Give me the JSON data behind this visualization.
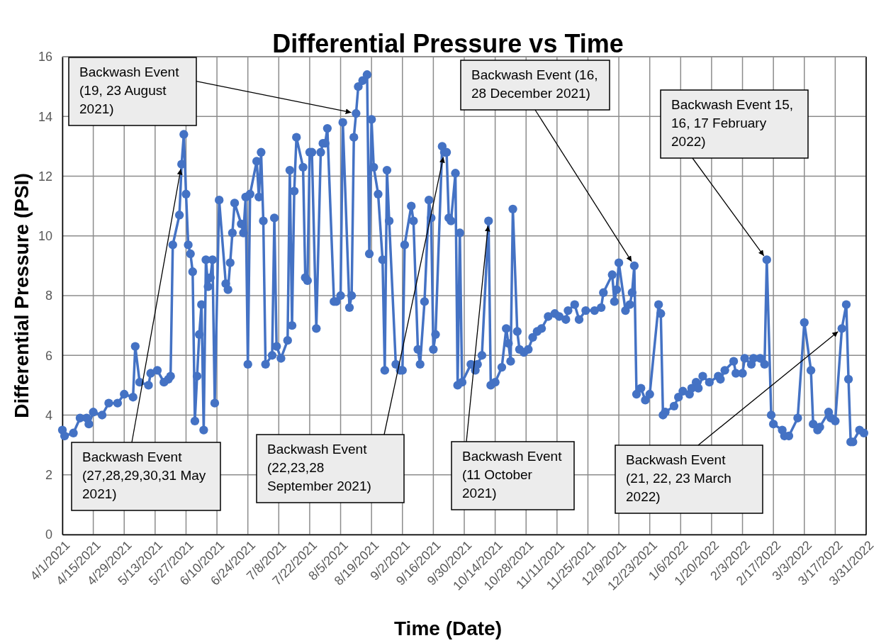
{
  "chart_data": {
    "type": "line",
    "title": "Differential Pressure vs Time",
    "xlabel": "Time (Date)",
    "ylabel": "Differential Pressure (PSI)",
    "xlim": [
      "2021-04-01",
      "2022-03-31"
    ],
    "xticks": [
      {
        "value": "2021-04-01",
        "label": "4/1/2021"
      },
      {
        "value": "2021-04-15",
        "label": "4/15/2021"
      },
      {
        "value": "2021-04-29",
        "label": "4/29/2021"
      },
      {
        "value": "2021-05-13",
        "label": "5/13/2021"
      },
      {
        "value": "2021-05-27",
        "label": "5/27/2021"
      },
      {
        "value": "2021-06-10",
        "label": "6/10/2021"
      },
      {
        "value": "2021-06-24",
        "label": "6/24/2021"
      },
      {
        "value": "2021-07-08",
        "label": "7/8/2021"
      },
      {
        "value": "2021-07-22",
        "label": "7/22/2021"
      },
      {
        "value": "2021-08-05",
        "label": "8/5/2021"
      },
      {
        "value": "2021-08-19",
        "label": "8/19/2021"
      },
      {
        "value": "2021-09-02",
        "label": "9/2/2021"
      },
      {
        "value": "2021-09-16",
        "label": "9/16/2021"
      },
      {
        "value": "2021-09-30",
        "label": "9/30/2021"
      },
      {
        "value": "2021-10-14",
        "label": "10/14/2021"
      },
      {
        "value": "2021-10-28",
        "label": "10/28/2021"
      },
      {
        "value": "2021-11-11",
        "label": "11/11/2021"
      },
      {
        "value": "2021-11-25",
        "label": "11/25/2021"
      },
      {
        "value": "2021-12-09",
        "label": "12/9/2021"
      },
      {
        "value": "2021-12-23",
        "label": "12/23/2021"
      },
      {
        "value": "2022-01-06",
        "label": "1/6/2022"
      },
      {
        "value": "2022-01-20",
        "label": "1/20/2022"
      },
      {
        "value": "2022-02-03",
        "label": "2/3/2022"
      },
      {
        "value": "2022-02-17",
        "label": "2/17/2022"
      },
      {
        "value": "2022-03-03",
        "label": "3/3/2022"
      },
      {
        "value": "2022-03-17",
        "label": "3/17/2022"
      },
      {
        "value": "2022-03-31",
        "label": "3/31/2022"
      }
    ],
    "ylim": [
      0,
      16
    ],
    "yticks": [
      0,
      2,
      4,
      6,
      8,
      10,
      12,
      14,
      16
    ],
    "grid": true,
    "marker": "circle",
    "line_style": "solid",
    "x": [
      "2021-04-01",
      "2021-04-02",
      "2021-04-06",
      "2021-04-09",
      "2021-04-12",
      "2021-04-13",
      "2021-04-15",
      "2021-04-19",
      "2021-04-22",
      "2021-04-26",
      "2021-04-29",
      "2021-05-03",
      "2021-05-04",
      "2021-05-06",
      "2021-05-10",
      "2021-05-11",
      "2021-05-14",
      "2021-05-17",
      "2021-05-19",
      "2021-05-20",
      "2021-05-21",
      "2021-05-24",
      "2021-05-25",
      "2021-05-26",
      "2021-05-27",
      "2021-05-28",
      "2021-05-29",
      "2021-05-30",
      "2021-05-31",
      "2021-06-01",
      "2021-06-02",
      "2021-06-03",
      "2021-06-04",
      "2021-06-05",
      "2021-06-06",
      "2021-06-07",
      "2021-06-08",
      "2021-06-09",
      "2021-06-11",
      "2021-06-14",
      "2021-06-15",
      "2021-06-16",
      "2021-06-17",
      "2021-06-18",
      "2021-06-21",
      "2021-06-22",
      "2021-06-23",
      "2021-06-24",
      "2021-06-25",
      "2021-06-28",
      "2021-06-29",
      "2021-06-30",
      "2021-07-01",
      "2021-07-02",
      "2021-07-05",
      "2021-07-06",
      "2021-07-07",
      "2021-07-09",
      "2021-07-12",
      "2021-07-13",
      "2021-07-14",
      "2021-07-15",
      "2021-07-16",
      "2021-07-19",
      "2021-07-20",
      "2021-07-21",
      "2021-07-22",
      "2021-07-23",
      "2021-07-25",
      "2021-07-27",
      "2021-07-28",
      "2021-07-29",
      "2021-07-30",
      "2021-08-02",
      "2021-08-03",
      "2021-08-05",
      "2021-08-06",
      "2021-08-09",
      "2021-08-10",
      "2021-08-11",
      "2021-08-12",
      "2021-08-13",
      "2021-08-15",
      "2021-08-17",
      "2021-08-18",
      "2021-08-19",
      "2021-08-20",
      "2021-08-22",
      "2021-08-24",
      "2021-08-25",
      "2021-08-26",
      "2021-08-27",
      "2021-08-30",
      "2021-09-01",
      "2021-09-02",
      "2021-09-03",
      "2021-09-06",
      "2021-09-07",
      "2021-09-09",
      "2021-09-10",
      "2021-09-12",
      "2021-09-14",
      "2021-09-15",
      "2021-09-16",
      "2021-09-17",
      "2021-09-20",
      "2021-09-21",
      "2021-09-22",
      "2021-09-23",
      "2021-09-24",
      "2021-09-26",
      "2021-09-27",
      "2021-09-28",
      "2021-09-29",
      "2021-10-03",
      "2021-10-05",
      "2021-10-06",
      "2021-10-08",
      "2021-10-11",
      "2021-10-12",
      "2021-10-14",
      "2021-10-17",
      "2021-10-19",
      "2021-10-20",
      "2021-10-21",
      "2021-10-22",
      "2021-10-24",
      "2021-10-25",
      "2021-10-27",
      "2021-10-29",
      "2021-10-31",
      "2021-11-02",
      "2021-11-04",
      "2021-11-07",
      "2021-11-10",
      "2021-11-12",
      "2021-11-15",
      "2021-11-16",
      "2021-11-19",
      "2021-11-21",
      "2021-11-24",
      "2021-11-28",
      "2021-12-01",
      "2021-12-02",
      "2021-12-06",
      "2021-12-07",
      "2021-12-08",
      "2021-12-09",
      "2021-12-12",
      "2021-12-14",
      "2021-12-15",
      "2021-12-16",
      "2021-12-17",
      "2021-12-19",
      "2021-12-21",
      "2021-12-23",
      "2021-12-27",
      "2021-12-28",
      "2021-12-29",
      "2021-12-30",
      "2022-01-03",
      "2022-01-05",
      "2022-01-07",
      "2022-01-10",
      "2022-01-11",
      "2022-01-13",
      "2022-01-14",
      "2022-01-16",
      "2022-01-19",
      "2022-01-23",
      "2022-01-24",
      "2022-01-26",
      "2022-01-30",
      "2022-01-31",
      "2022-02-03",
      "2022-02-04",
      "2022-02-07",
      "2022-02-08",
      "2022-02-11",
      "2022-02-13",
      "2022-02-14",
      "2022-02-16",
      "2022-02-17",
      "2022-02-21",
      "2022-02-22",
      "2022-02-24",
      "2022-02-28",
      "2022-03-03",
      "2022-03-06",
      "2022-03-07",
      "2022-03-09",
      "2022-03-10",
      "2022-03-14",
      "2022-03-15",
      "2022-03-17",
      "2022-03-20",
      "2022-03-22",
      "2022-03-23",
      "2022-03-24",
      "2022-03-25",
      "2022-03-28",
      "2022-03-30"
    ],
    "series": [
      {
        "color": "#4472c4",
        "values": [
          3.5,
          3.3,
          3.4,
          3.9,
          3.9,
          3.7,
          4.1,
          4.0,
          4.4,
          4.4,
          4.7,
          4.6,
          6.3,
          5.1,
          5.0,
          5.4,
          5.5,
          5.1,
          5.2,
          5.3,
          9.7,
          10.7,
          12.4,
          13.4,
          11.4,
          9.7,
          9.4,
          8.8,
          3.8,
          5.3,
          6.7,
          7.7,
          3.5,
          9.2,
          8.3,
          8.6,
          9.2,
          4.4,
          11.2,
          8.4,
          8.2,
          9.1,
          10.1,
          11.1,
          10.4,
          10.1,
          11.3,
          5.7,
          11.4,
          12.5,
          11.3,
          12.8,
          10.5,
          5.7,
          6.0,
          10.6,
          6.3,
          5.9,
          6.5,
          12.2,
          7.0,
          11.5,
          13.3,
          12.3,
          8.6,
          8.5,
          12.8,
          12.8,
          6.9,
          12.8,
          13.1,
          13.1,
          13.6,
          7.8,
          7.8,
          8.0,
          13.8,
          7.6,
          8.0,
          13.3,
          14.1,
          15.0,
          15.2,
          15.4,
          9.4,
          13.9,
          12.3,
          11.4,
          9.2,
          5.5,
          12.2,
          10.5,
          5.7,
          5.5,
          5.5,
          9.7,
          11.0,
          10.5,
          6.2,
          5.7,
          7.8,
          11.2,
          10.6,
          6.2,
          6.7,
          13.0,
          12.8,
          12.8,
          10.6,
          10.5,
          12.1,
          5.0,
          10.1,
          5.1,
          5.7,
          5.5,
          5.7,
          6.0,
          10.5,
          5.0,
          5.1,
          5.6,
          6.9,
          6.4,
          5.8,
          10.9,
          6.8,
          6.2,
          6.1,
          6.2,
          6.6,
          6.8,
          6.9,
          7.3,
          7.4,
          7.3,
          7.2,
          7.5,
          7.7,
          7.2,
          7.5,
          7.5,
          7.6,
          8.1,
          8.7,
          7.8,
          8.2,
          9.1,
          7.5,
          7.7,
          8.1,
          9.0,
          4.7,
          4.9,
          4.5,
          4.7,
          7.7,
          7.4,
          4.0,
          4.1,
          4.3,
          4.6,
          4.8,
          4.7,
          4.9,
          5.1,
          4.9,
          5.3,
          5.1,
          5.3,
          5.2,
          5.5,
          5.8,
          5.4,
          5.4,
          5.9,
          5.7,
          5.9,
          5.9,
          5.7,
          9.2,
          4.0,
          3.7,
          3.5,
          3.3,
          3.3,
          3.9,
          7.1,
          5.5,
          3.7,
          3.5,
          3.6,
          4.1,
          3.9,
          3.8,
          6.9,
          7.7,
          5.2,
          3.1,
          3.1,
          3.5,
          3.4
        ]
      }
    ],
    "annotations": [
      {
        "text": "Backwash Event (27,28,29,30,31 May 2021)",
        "x": "2021-05-25",
        "y": 12.4
      },
      {
        "text": "Backwash Event (19, 23 August 2021)",
        "x": "2021-08-12",
        "y": 14.1
      },
      {
        "text": "Backwash Event (22,23,28 September 2021)",
        "x": "2021-09-21",
        "y": 12.8
      },
      {
        "text": "Backwash Event (11 October 2021)",
        "x": "2021-10-11",
        "y": 10.5
      },
      {
        "text": "Backwash Event (16, 28 December 2021)",
        "x": "2021-12-16",
        "y": 9.0
      },
      {
        "text": "Backwash Event 15, 16, 17 February 2022)",
        "x": "2022-02-14",
        "y": 9.2
      },
      {
        "text": "Backwash Event (21, 22, 23 March 2022)",
        "x": "2022-03-20",
        "y": 6.9
      }
    ]
  }
}
